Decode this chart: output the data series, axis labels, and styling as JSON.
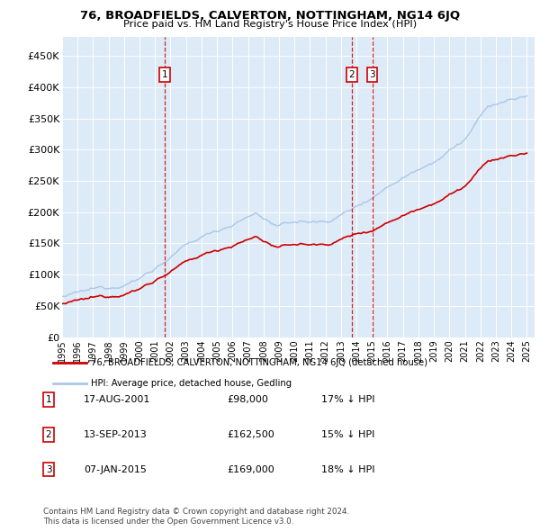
{
  "title": "76, BROADFIELDS, CALVERTON, NOTTINGHAM, NG14 6JQ",
  "subtitle": "Price paid vs. HM Land Registry's House Price Index (HPI)",
  "hpi_color": "#aac8e8",
  "price_color": "#cc0000",
  "bg_color": "#ddeaf7",
  "legend_label_price": "76, BROADFIELDS, CALVERTON, NOTTINGHAM, NG14 6JQ (detached house)",
  "legend_label_hpi": "HPI: Average price, detached house, Gedling",
  "transactions": [
    {
      "num": 1,
      "date": "17-AUG-2001",
      "price": 98000,
      "pct": "17%",
      "dir": "↓",
      "x_year": 2001.625
    },
    {
      "num": 2,
      "date": "13-SEP-2013",
      "price": 162500,
      "pct": "15%",
      "dir": "↓",
      "x_year": 2013.708
    },
    {
      "num": 3,
      "date": "07-JAN-2015",
      "price": 169000,
      "pct": "18%",
      "dir": "↓",
      "x_year": 2015.017
    }
  ],
  "footer_line1": "Contains HM Land Registry data © Crown copyright and database right 2024.",
  "footer_line2": "This data is licensed under the Open Government Licence v3.0.",
  "xmin": 1995.0,
  "xmax": 2025.5,
  "ylim": [
    0,
    480000
  ],
  "yticks": [
    0,
    50000,
    100000,
    150000,
    200000,
    250000,
    300000,
    350000,
    400000,
    450000
  ],
  "ytick_labels": [
    "£0",
    "£50K",
    "£100K",
    "£150K",
    "£200K",
    "£250K",
    "£300K",
    "£350K",
    "£400K",
    "£450K"
  ]
}
